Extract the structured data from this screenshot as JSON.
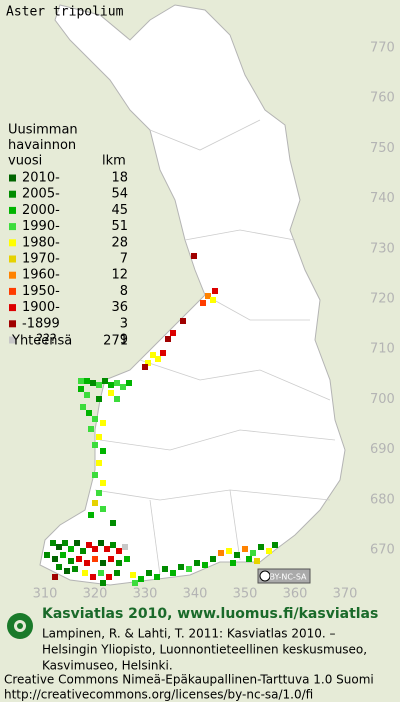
{
  "title": "Aster tripolium",
  "legend": {
    "header": [
      "Uusimman",
      "havainnon",
      "vuosi"
    ],
    "count_header": "lkm",
    "entries": [
      {
        "label": "2010-",
        "count": 18,
        "color": "#006400"
      },
      {
        "label": "2005-",
        "count": 54,
        "color": "#008c00"
      },
      {
        "label": "2000-",
        "count": 45,
        "color": "#00b400"
      },
      {
        "label": "1990-",
        "count": 51,
        "color": "#3cdc3c"
      },
      {
        "label": "1980-",
        "count": 28,
        "color": "#ffff00"
      },
      {
        "label": "1970-",
        "count": 7,
        "color": "#e6d200"
      },
      {
        "label": "1960-",
        "count": 12,
        "color": "#ff8200"
      },
      {
        "label": "1950-",
        "count": 8,
        "color": "#ff3c00"
      },
      {
        "label": "1900-",
        "count": 36,
        "color": "#dc0000"
      },
      {
        "label": "-1899",
        "count": 3,
        "color": "#a00000"
      },
      {
        "label": "???",
        "count": 9,
        "color": "#c8c8c8"
      }
    ],
    "total_label": "Yhteensä",
    "total": 271
  },
  "grid": {
    "y_labels": [
      770,
      760,
      750,
      740,
      730,
      720,
      710,
      700,
      690,
      680,
      670
    ],
    "x_labels": [
      310,
      320,
      330,
      340,
      350,
      360,
      370
    ]
  },
  "license_badge": "BY-NC-SA",
  "footer": {
    "heading": "Kasviatlas 2010, www.luomus.fi/kasviatlas",
    "citation": [
      "Lampinen, R. & Lahti, T. 2011: Kasviatlas 2010. –",
      "Helsingin Yliopisto, Luonnontieteellinen keskusmuseo,",
      "Kasvimuseo, Helsinki."
    ],
    "license": [
      "Creative Commons Nimeä-Epäkaupallinen-Tarttuva 1.0 Suomi",
      "http://creativecommons.org/licenses/by-nc-sa/1.0/fi"
    ]
  }
}
